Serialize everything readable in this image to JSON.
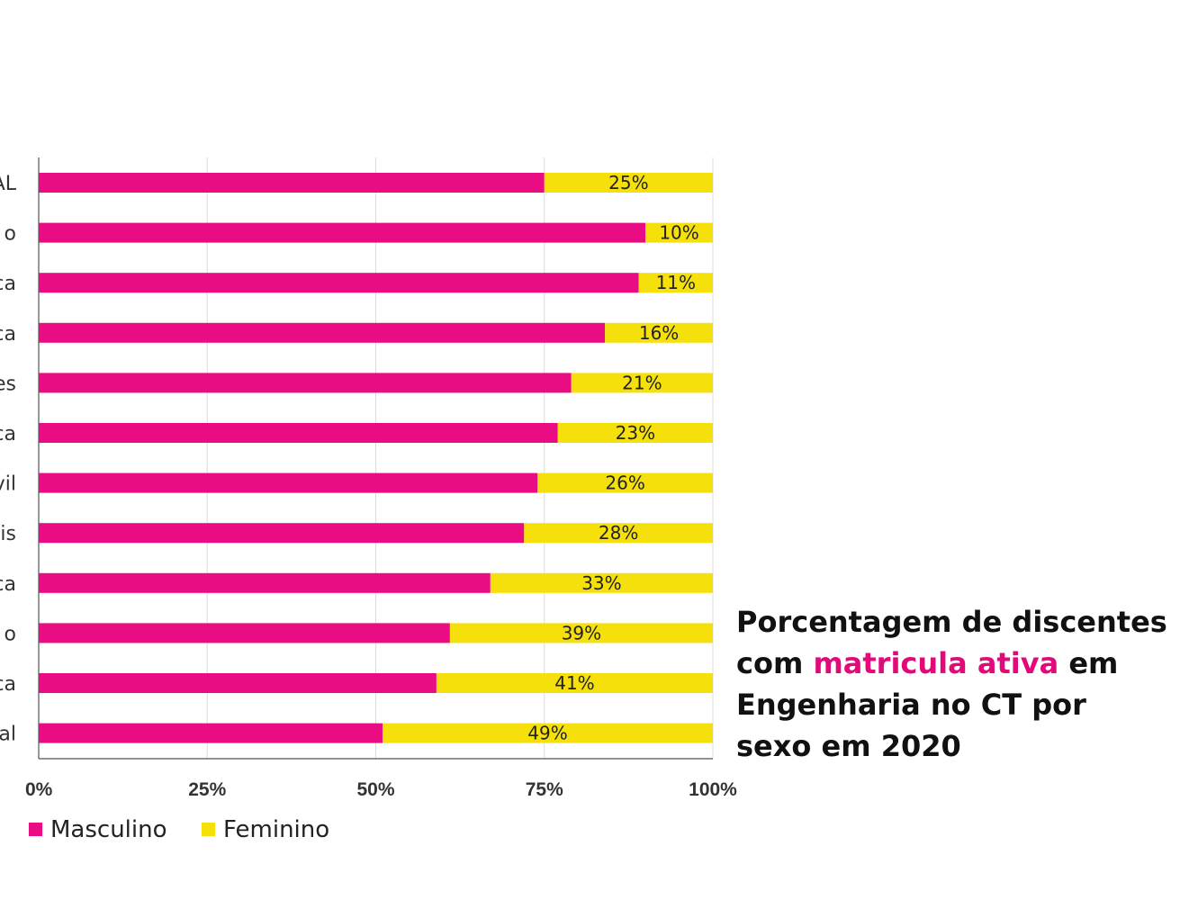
{
  "chart_data": {
    "type": "bar",
    "orientation": "horizontal",
    "stacked": true,
    "categories": [
      "AL",
      "o",
      "ca",
      "ca",
      "es",
      "ca",
      "vil",
      "is",
      "ca",
      "o",
      "ca",
      "al"
    ],
    "series": [
      {
        "name": "Masculino",
        "color": "#ea0c82",
        "values": [
          75,
          90,
          89,
          84,
          79,
          77,
          74,
          72,
          67,
          61,
          59,
          51
        ]
      },
      {
        "name": "Feminino",
        "color": "#f5e00c",
        "values": [
          25,
          10,
          11,
          16,
          21,
          23,
          26,
          28,
          33,
          39,
          41,
          49
        ]
      }
    ],
    "data_labels": [
      "25%",
      "10%",
      "11%",
      "16%",
      "21%",
      "23%",
      "26%",
      "28%",
      "33%",
      "39%",
      "41%",
      "49%"
    ],
    "xlim": [
      0,
      100
    ],
    "xticks": [
      0,
      25,
      50,
      75,
      100
    ],
    "xtick_labels": [
      "0%",
      "25%",
      "50%",
      "75%",
      "100%"
    ],
    "grid": true,
    "legend_position": "bottom-left"
  },
  "caption": {
    "line1": "Porcentagem de discentes",
    "line2_a": "com ",
    "line2_highlight": "matricula ativa",
    "line2_b": " em",
    "line3": "Engenharia no CT por",
    "line4": "sexo em 2020"
  }
}
